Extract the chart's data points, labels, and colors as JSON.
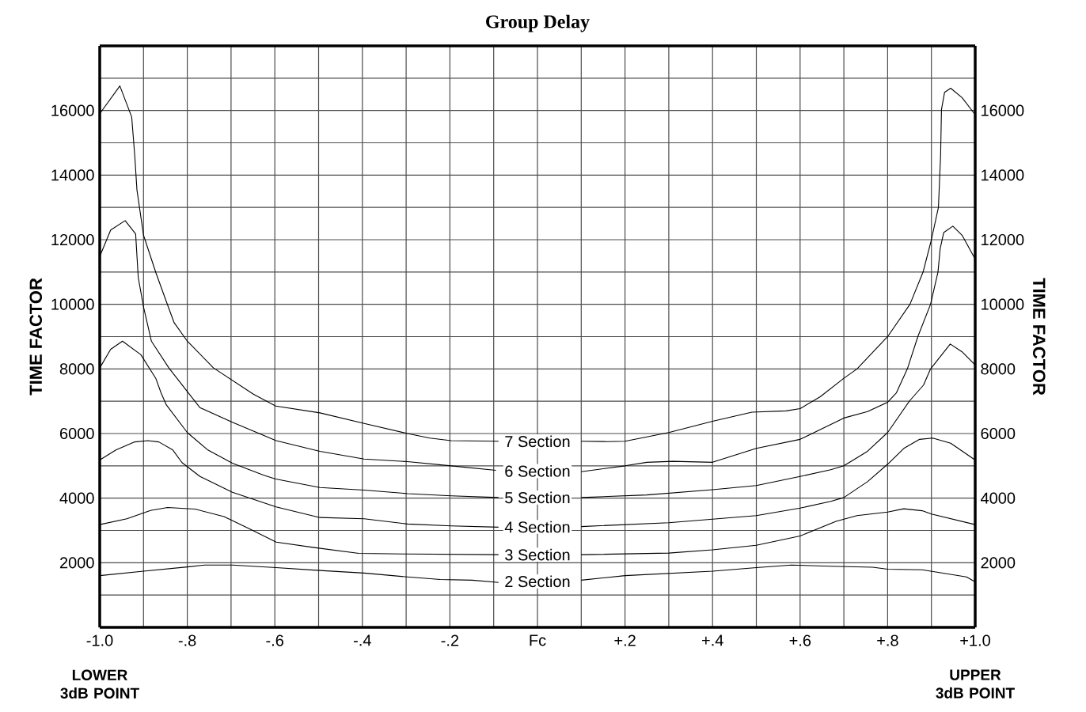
{
  "chart_data": {
    "type": "line",
    "title": "Group Delay",
    "ylabel": "TIME FACTOR",
    "y2label": "TIME FACTOR",
    "grid": true,
    "xlim": [
      -1.0,
      1.0
    ],
    "ylim": [
      0,
      18000
    ],
    "y2lim": [
      0,
      18000
    ],
    "xticks": [
      {
        "value": -1.0,
        "label": "-1.0"
      },
      {
        "value": -0.9,
        "label": null
      },
      {
        "value": -0.8,
        "label": "-.8"
      },
      {
        "value": -0.7,
        "label": null
      },
      {
        "value": -0.6,
        "label": "-.6"
      },
      {
        "value": -0.5,
        "label": null
      },
      {
        "value": -0.4,
        "label": "-.4"
      },
      {
        "value": -0.3,
        "label": null
      },
      {
        "value": -0.2,
        "label": "-.2"
      },
      {
        "value": -0.1,
        "label": null
      },
      {
        "value": 0,
        "label": "Fc"
      },
      {
        "value": 0.1,
        "label": null
      },
      {
        "value": 0.2,
        "label": "+.2"
      },
      {
        "value": 0.3,
        "label": null
      },
      {
        "value": 0.4,
        "label": "+.4"
      },
      {
        "value": 0.5,
        "label": null
      },
      {
        "value": 0.6,
        "label": "+.6"
      },
      {
        "value": 0.7,
        "label": null
      },
      {
        "value": 0.8,
        "label": "+.8"
      },
      {
        "value": 0.9,
        "label": null
      },
      {
        "value": 1.0,
        "label": "+1.0"
      }
    ],
    "yticks": [
      {
        "value": 0,
        "label": null
      },
      {
        "value": 1000,
        "label": null
      },
      2000,
      {
        "value": 3000,
        "label": null
      },
      4000,
      {
        "value": 5000,
        "label": null
      },
      6000,
      {
        "value": 7000,
        "label": null
      },
      8000,
      {
        "value": 9000,
        "label": null
      },
      10000,
      {
        "value": 11000,
        "label": null
      },
      12000,
      {
        "value": 13000,
        "label": null
      },
      14000,
      {
        "value": 15000,
        "label": null
      },
      16000,
      {
        "value": 17000,
        "label": null
      },
      {
        "value": 18000,
        "label": null
      }
    ],
    "y2ticks": [
      2000,
      4000,
      6000,
      8000,
      10000,
      12000,
      14000,
      16000
    ],
    "series": [
      {
        "name": "7 Section",
        "color": "#000000",
        "x": [
          -1.0,
          -0.954,
          -0.927,
          -0.92,
          -0.915,
          -0.9,
          -0.872,
          -0.848,
          -0.83,
          -0.8,
          -0.74,
          -0.649,
          -0.598,
          -0.497,
          -0.396,
          -0.297,
          -0.246,
          -0.197,
          -0.089,
          0,
          0.1,
          0.16,
          0.2,
          0.3,
          0.4,
          0.49,
          0.568,
          0.6,
          0.646,
          0.7,
          0.73,
          0.8,
          0.851,
          0.881,
          0.9,
          0.916,
          0.921,
          0.923,
          0.93,
          0.944,
          0.97,
          1.0
        ],
        "values": [
          15900,
          16760,
          15800,
          14600,
          13540,
          12140,
          10990,
          10090,
          9430,
          8860,
          8030,
          7220,
          6850,
          6640,
          6310,
          6000,
          5860,
          5780,
          5760,
          null,
          5760,
          5750,
          5760,
          6030,
          6380,
          6660,
          6700,
          6770,
          7140,
          7710,
          8000,
          9000,
          10000,
          11000,
          12000,
          13000,
          14600,
          16030,
          16560,
          16690,
          16400,
          15870
        ]
      },
      {
        "name": "6 Section",
        "color": "#000000",
        "x": [
          -1.0,
          -0.975,
          -0.942,
          -0.918,
          -0.912,
          -0.9,
          -0.882,
          -0.842,
          -0.8,
          -0.771,
          -0.697,
          -0.597,
          -0.497,
          -0.396,
          -0.297,
          -0.197,
          -0.095,
          0,
          0.1,
          0.2,
          0.25,
          0.31,
          0.4,
          0.5,
          0.6,
          0.7,
          0.754,
          0.8,
          0.82,
          0.845,
          0.869,
          0.898,
          0.915,
          0.92,
          0.928,
          0.949,
          0.97,
          1.0
        ],
        "values": [
          11480,
          12300,
          12590,
          12180,
          10830,
          9920,
          8860,
          8030,
          7300,
          6800,
          6350,
          5780,
          5450,
          5210,
          5130,
          5000,
          4860,
          null,
          4820,
          5000,
          5110,
          5140,
          5110,
          5540,
          5820,
          6480,
          6680,
          6970,
          7260,
          8000,
          9000,
          10000,
          11000,
          11720,
          12220,
          12420,
          12140,
          11400
        ]
      },
      {
        "name": "5 Section",
        "color": "#000000",
        "x": [
          -1.0,
          -0.975,
          -0.948,
          -0.906,
          -0.872,
          -0.86,
          -0.848,
          -0.8,
          -0.753,
          -0.697,
          -0.625,
          -0.598,
          -0.497,
          -0.396,
          -0.297,
          -0.197,
          -0.089,
          0,
          0.1,
          0.25,
          0.4,
          0.5,
          0.6,
          0.67,
          0.7,
          0.754,
          0.8,
          0.85,
          0.882,
          0.898,
          0.943,
          0.97,
          1.0
        ],
        "values": [
          8030,
          8610,
          8860,
          8440,
          7710,
          7260,
          6890,
          6030,
          5490,
          5080,
          4710,
          4590,
          4330,
          4250,
          4140,
          4070,
          4020,
          null,
          4020,
          4100,
          4260,
          4390,
          4670,
          4880,
          5000,
          5450,
          6030,
          7010,
          7500,
          8000,
          8770,
          8530,
          8120
        ]
      },
      {
        "name": "4 Section",
        "color": "#000000",
        "x": [
          -1.0,
          -0.963,
          -0.92,
          -0.89,
          -0.865,
          -0.833,
          -0.812,
          -0.771,
          -0.697,
          -0.597,
          -0.497,
          -0.396,
          -0.297,
          -0.197,
          -0.089,
          0,
          0.1,
          0.3,
          0.4,
          0.5,
          0.6,
          0.67,
          0.7,
          0.754,
          0.8,
          0.837,
          0.873,
          0.903,
          0.944,
          1.0
        ],
        "values": [
          5180,
          5490,
          5740,
          5780,
          5740,
          5490,
          5100,
          4670,
          4180,
          3730,
          3400,
          3360,
          3200,
          3140,
          3100,
          null,
          3120,
          3240,
          3350,
          3460,
          3690,
          3900,
          4020,
          4510,
          5050,
          5540,
          5820,
          5860,
          5700,
          5180
        ]
      },
      {
        "name": "3 Section",
        "color": "#000000",
        "x": [
          -1.0,
          -0.938,
          -0.884,
          -0.845,
          -0.782,
          -0.716,
          -0.655,
          -0.597,
          -0.51,
          -0.408,
          -0.297,
          -0.089,
          0,
          0.1,
          0.3,
          0.4,
          0.5,
          0.6,
          0.682,
          0.73,
          0.8,
          0.837,
          0.879,
          0.9,
          1.0
        ],
        "values": [
          3180,
          3360,
          3620,
          3710,
          3660,
          3430,
          3030,
          2640,
          2470,
          2290,
          2270,
          2250,
          null,
          2250,
          2300,
          2400,
          2540,
          2830,
          3280,
          3460,
          3570,
          3670,
          3610,
          3510,
          3180
        ]
      },
      {
        "name": "2 Section",
        "color": "#000000",
        "x": [
          -1.0,
          -0.9,
          -0.8,
          -0.76,
          -0.697,
          -0.597,
          -0.497,
          -0.396,
          -0.297,
          -0.222,
          -0.149,
          -0.089,
          0,
          0.1,
          0.2,
          0.4,
          0.5,
          0.58,
          0.67,
          0.766,
          0.8,
          0.879,
          0.98,
          1.0
        ],
        "values": [
          1600,
          1740,
          1870,
          1930,
          1930,
          1850,
          1760,
          1680,
          1560,
          1480,
          1460,
          1390,
          null,
          1460,
          1600,
          1740,
          1850,
          1930,
          1890,
          1860,
          1800,
          1780,
          1560,
          1410
        ]
      }
    ],
    "annotations": [
      "LOWER 3dB POINT",
      "UPPER 3dB POINT"
    ]
  }
}
